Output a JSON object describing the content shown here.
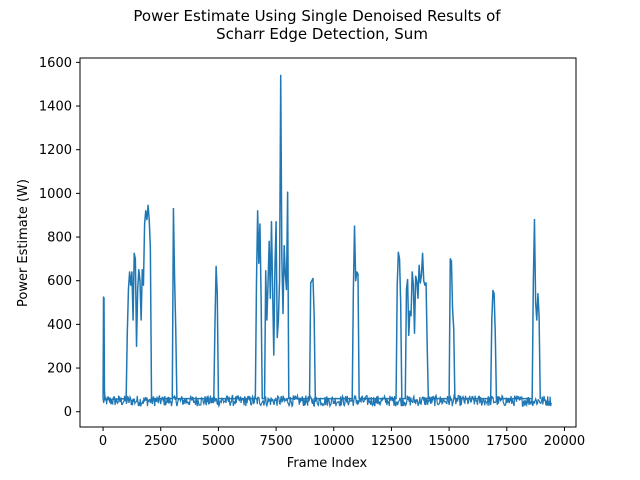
{
  "chart_data": {
    "type": "line",
    "title_lines": [
      "Power Estimate Using Single Denoised Results of",
      "Scharr Edge Detection, Sum"
    ],
    "xlabel": "Frame Index",
    "ylabel": "Power Estimate (W)",
    "xlim": [
      -1000,
      20500
    ],
    "ylim": [
      -70,
      1620
    ],
    "x_ticks": [
      0,
      2500,
      5000,
      7500,
      10000,
      12500,
      15000,
      17500,
      20000
    ],
    "x_tick_labels": [
      "0",
      "2500",
      "5000",
      "7500",
      "10000",
      "12500",
      "15000",
      "17500",
      "20000"
    ],
    "y_ticks": [
      0,
      200,
      400,
      600,
      800,
      1000,
      1200,
      1400,
      1600
    ],
    "y_tick_labels": [
      "0",
      "200",
      "400",
      "600",
      "800",
      "1000",
      "1200",
      "1400",
      "1600"
    ],
    "grid": false,
    "line_color": "#1f77b4",
    "series": [
      {
        "baseline_range": [
          0,
          19450
        ],
        "baseline_level": [
          25,
          75
        ],
        "points": [
          [
            0,
            60
          ],
          [
            20,
            525
          ],
          [
            40,
            520
          ],
          [
            60,
            100
          ],
          [
            80,
            55
          ],
          [
            1000,
            60
          ],
          [
            1050,
            360
          ],
          [
            1100,
            560
          ],
          [
            1150,
            640
          ],
          [
            1200,
            580
          ],
          [
            1250,
            640
          ],
          [
            1300,
            420
          ],
          [
            1350,
            725
          ],
          [
            1400,
            700
          ],
          [
            1450,
            300
          ],
          [
            1500,
            560
          ],
          [
            1550,
            650
          ],
          [
            1600,
            600
          ],
          [
            1650,
            420
          ],
          [
            1700,
            650
          ],
          [
            1750,
            580
          ],
          [
            1800,
            860
          ],
          [
            1850,
            920
          ],
          [
            1900,
            880
          ],
          [
            1950,
            945
          ],
          [
            2000,
            880
          ],
          [
            2050,
            750
          ],
          [
            2100,
            60
          ],
          [
            3000,
            60
          ],
          [
            3050,
            930
          ],
          [
            3100,
            610
          ],
          [
            3150,
            380
          ],
          [
            3200,
            60
          ],
          [
            4800,
            60
          ],
          [
            4850,
            400
          ],
          [
            4900,
            665
          ],
          [
            4950,
            540
          ],
          [
            5000,
            60
          ],
          [
            6600,
            60
          ],
          [
            6650,
            590
          ],
          [
            6700,
            920
          ],
          [
            6750,
            680
          ],
          [
            6800,
            860
          ],
          [
            6850,
            520
          ],
          [
            6900,
            60
          ],
          [
            7000,
            60
          ],
          [
            7050,
            645
          ],
          [
            7100,
            420
          ],
          [
            7150,
            585
          ],
          [
            7200,
            780
          ],
          [
            7250,
            520
          ],
          [
            7300,
            870
          ],
          [
            7350,
            560
          ],
          [
            7400,
            260
          ],
          [
            7450,
            660
          ],
          [
            7500,
            870
          ],
          [
            7550,
            340
          ],
          [
            7600,
            420
          ],
          [
            7650,
            600
          ],
          [
            7700,
            1540
          ],
          [
            7750,
            700
          ],
          [
            7800,
            450
          ],
          [
            7850,
            760
          ],
          [
            7900,
            630
          ],
          [
            7950,
            560
          ],
          [
            8000,
            1005
          ],
          [
            8050,
            60
          ],
          [
            8950,
            60
          ],
          [
            9000,
            590
          ],
          [
            9050,
            600
          ],
          [
            9100,
            610
          ],
          [
            9150,
            440
          ],
          [
            9200,
            60
          ],
          [
            10800,
            60
          ],
          [
            10850,
            560
          ],
          [
            10900,
            850
          ],
          [
            10950,
            600
          ],
          [
            11000,
            640
          ],
          [
            11050,
            630
          ],
          [
            11100,
            60
          ],
          [
            12700,
            60
          ],
          [
            12750,
            580
          ],
          [
            12800,
            730
          ],
          [
            12850,
            700
          ],
          [
            12900,
            500
          ],
          [
            12950,
            60
          ],
          [
            13100,
            60
          ],
          [
            13150,
            560
          ],
          [
            13200,
            605
          ],
          [
            13250,
            350
          ],
          [
            13300,
            460
          ],
          [
            13350,
            440
          ],
          [
            13400,
            640
          ],
          [
            13450,
            580
          ],
          [
            13500,
            360
          ],
          [
            13550,
            620
          ],
          [
            13600,
            600
          ],
          [
            13650,
            520
          ],
          [
            13700,
            670
          ],
          [
            13750,
            590
          ],
          [
            13800,
            625
          ],
          [
            13850,
            725
          ],
          [
            13900,
            600
          ],
          [
            13950,
            580
          ],
          [
            14000,
            590
          ],
          [
            14050,
            300
          ],
          [
            14100,
            60
          ],
          [
            15000,
            60
          ],
          [
            15050,
            700
          ],
          [
            15100,
            690
          ],
          [
            15150,
            470
          ],
          [
            15200,
            380
          ],
          [
            15250,
            60
          ],
          [
            16800,
            60
          ],
          [
            16850,
            420
          ],
          [
            16900,
            555
          ],
          [
            16950,
            540
          ],
          [
            17000,
            360
          ],
          [
            17050,
            60
          ],
          [
            18600,
            60
          ],
          [
            18650,
            590
          ],
          [
            18700,
            880
          ],
          [
            18750,
            500
          ],
          [
            18800,
            420
          ],
          [
            18850,
            540
          ],
          [
            18900,
            440
          ],
          [
            18950,
            60
          ]
        ]
      }
    ]
  }
}
